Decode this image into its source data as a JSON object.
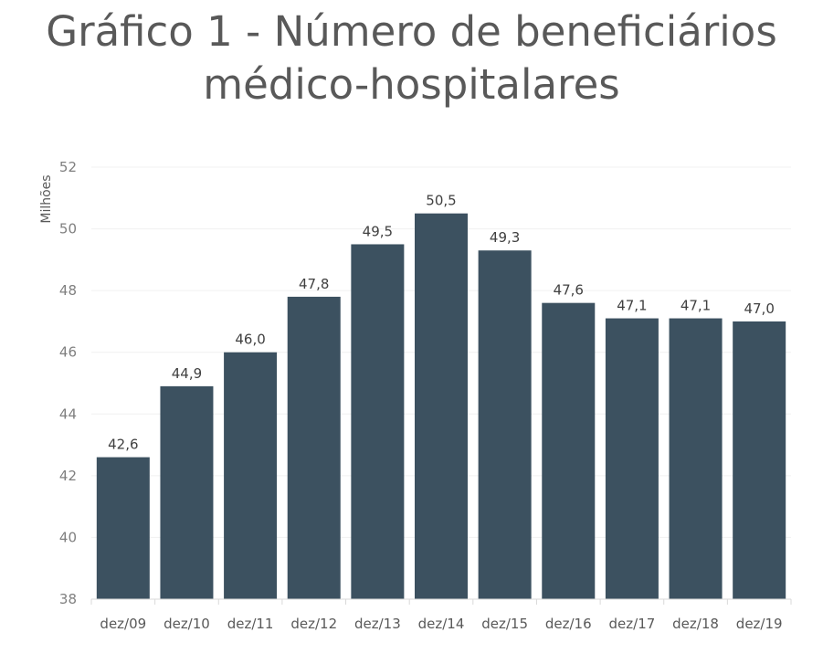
{
  "chart_data": {
    "type": "bar",
    "title_line1": "Gráfico 1 - Número de beneficiários",
    "title_line2": "médico-hospitalares",
    "ylabel": "Milhões",
    "xlabel": "",
    "ylim": [
      38,
      52
    ],
    "yticks": [
      "38",
      "40",
      "42",
      "44",
      "46",
      "48",
      "50",
      "52"
    ],
    "categories": [
      "dez/09",
      "dez/10",
      "dez/11",
      "dez/12",
      "dez/13",
      "dez/14",
      "dez/15",
      "dez/16",
      "dez/17",
      "dez/18",
      "dez/19"
    ],
    "values": [
      42.6,
      44.9,
      46.0,
      47.8,
      49.5,
      50.5,
      49.3,
      47.6,
      47.1,
      47.1,
      47.0
    ],
    "labels": [
      "42,6",
      "44,9",
      "46,0",
      "47,8",
      "49,5",
      "50,5",
      "49,3",
      "47,6",
      "47,1",
      "47,1",
      "47,0"
    ],
    "bar_color": "#3c5160",
    "grid": true,
    "legend": "none"
  }
}
